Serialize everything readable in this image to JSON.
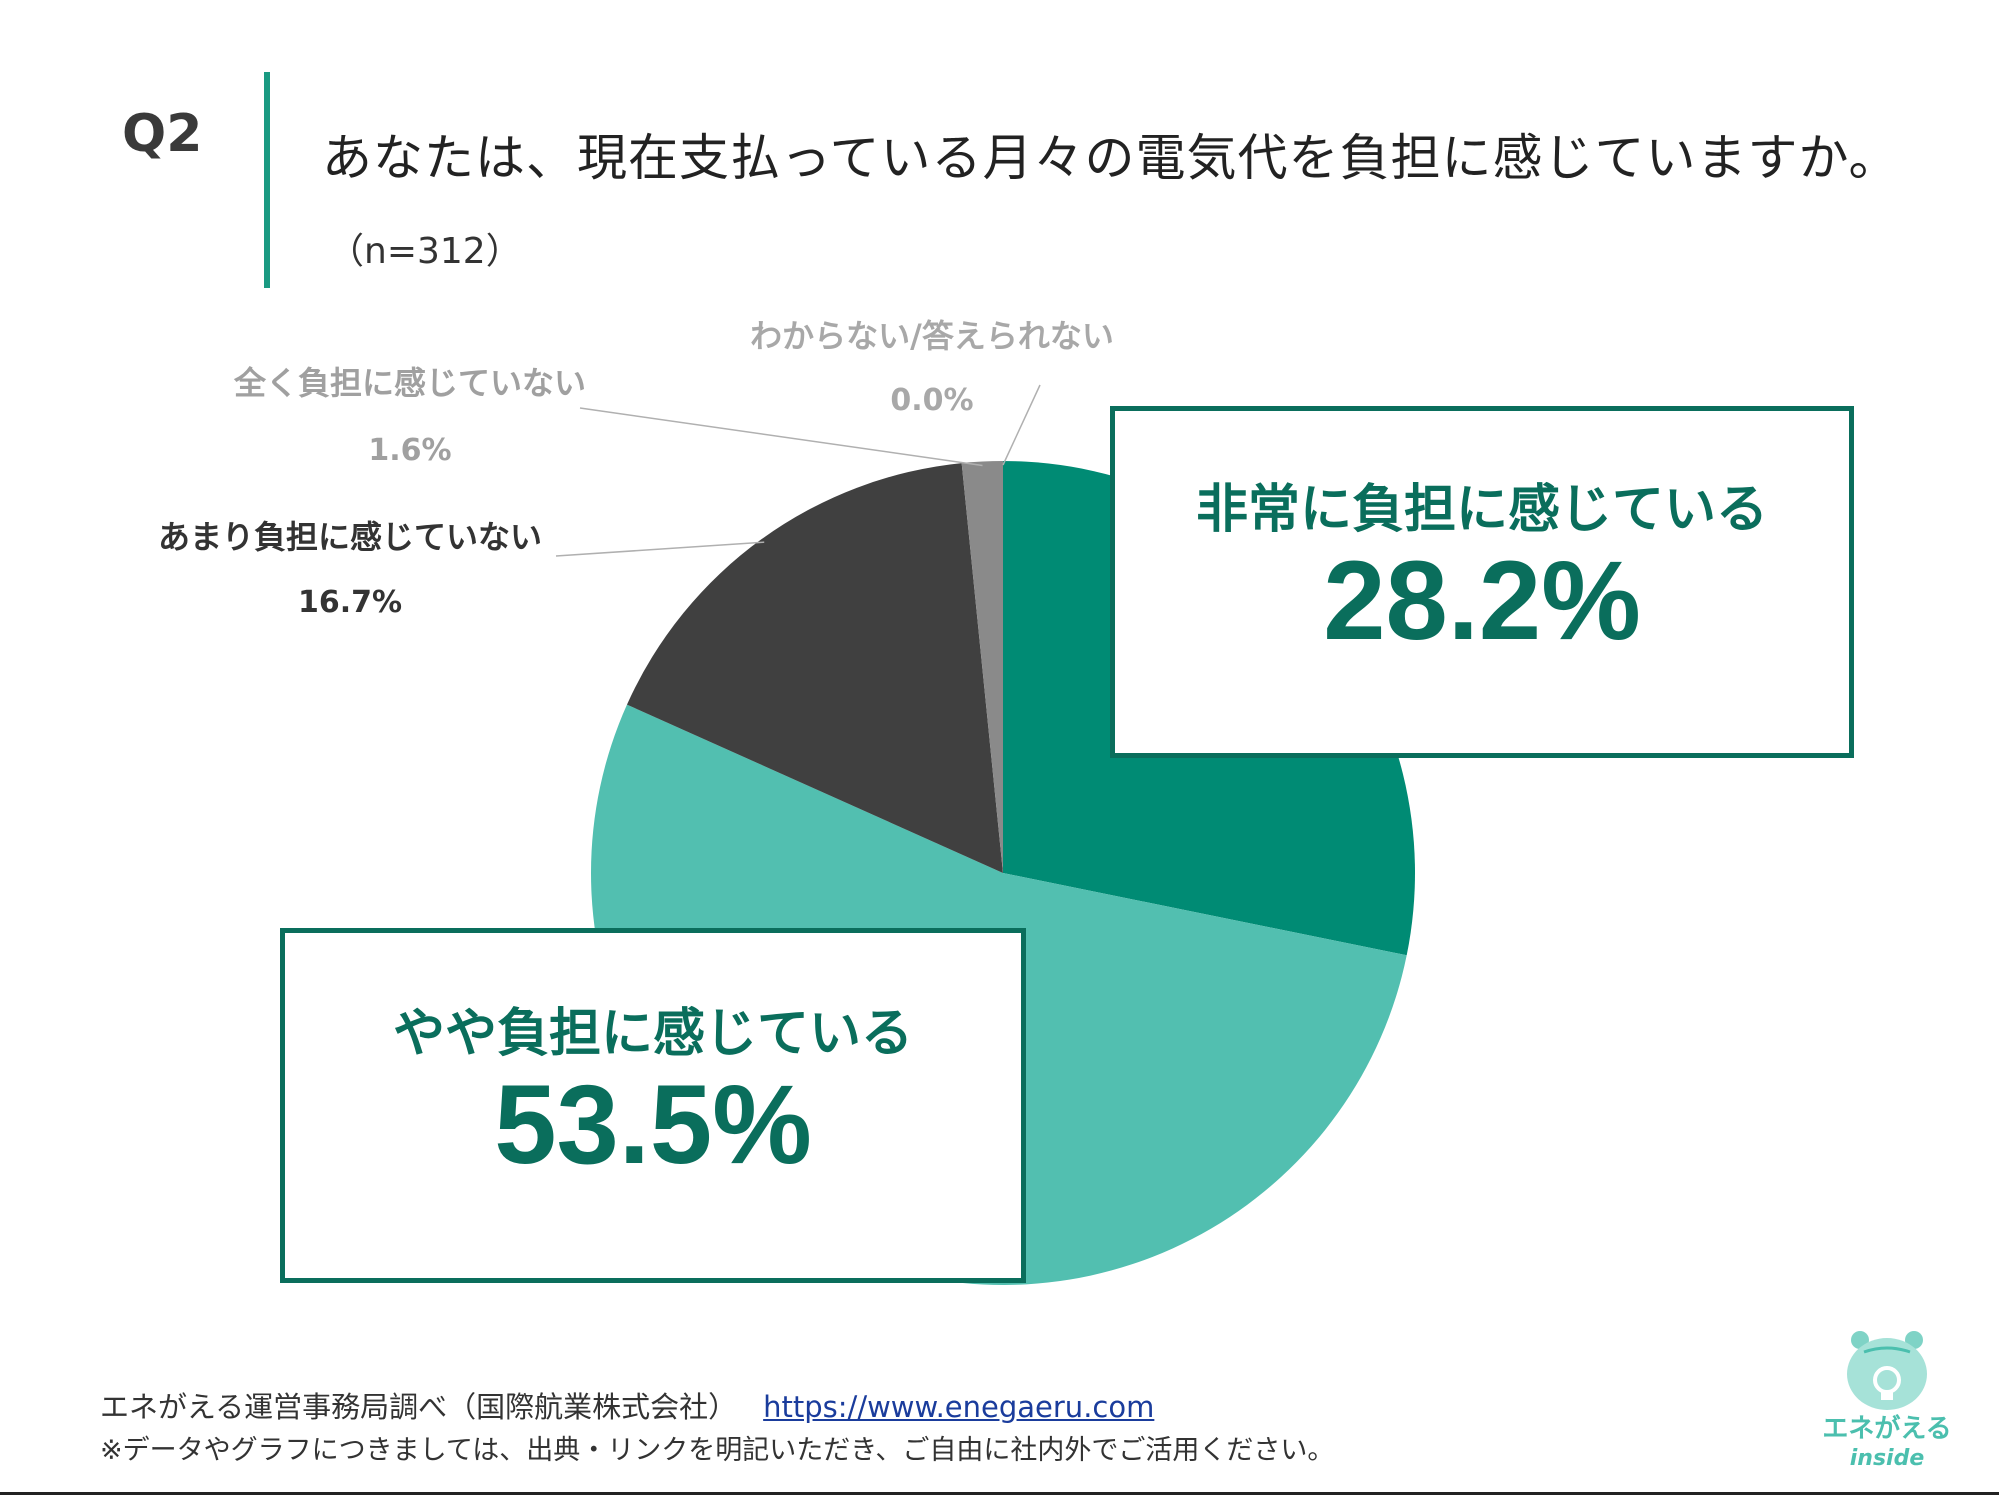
{
  "header": {
    "q_label": "Q2",
    "question": "あなたは、現在支払っている月々の電気代を負担に感じていますか。",
    "sample": "（n=312）"
  },
  "chart_data": {
    "type": "pie",
    "title": "あなたは、現在支払っている月々の電気代を負担に感じていますか。",
    "categories": [
      "非常に負担に感じている",
      "やや負担に感じている",
      "あまり負担に感じていない",
      "全く負担に感じていない",
      "わからない/答えられない"
    ],
    "values": [
      28.2,
      53.5,
      16.7,
      1.6,
      0.0
    ],
    "value_labels": [
      "28.2%",
      "53.5%",
      "16.7%",
      "1.6%",
      "0.0%"
    ],
    "colors": [
      "#008b74",
      "#52bfb0",
      "#404040",
      "#8a8a8a",
      "#c0c0c0"
    ],
    "label_colors": [
      "#0a6e5c",
      "#0a6e5c",
      "#333333",
      "#a0a0a0",
      "#a8a8a8"
    ],
    "start": "12 o'clock",
    "direction": "clockwise"
  },
  "footer": {
    "source": "エネがえる運営事務局調べ（国際航業株式会社）",
    "url": "https://www.enegaeru.com",
    "note": "※データやグラフにつきましては、出典・リンクを明記いただき、ご自由に社内外でご活用ください。"
  },
  "logo": {
    "name": "エネがえる",
    "sub": "inside",
    "icon": "frog-lightbulb-icon"
  }
}
